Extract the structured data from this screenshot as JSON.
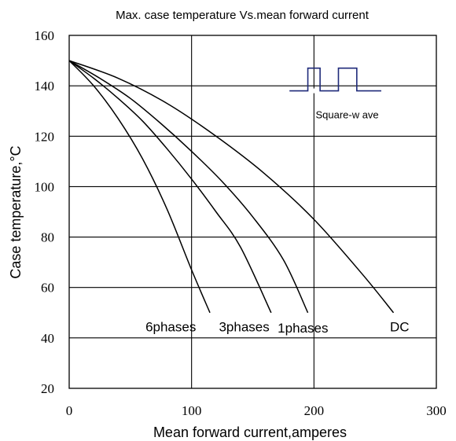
{
  "chart_data": {
    "type": "line",
    "title": "Max. case temperature Vs.mean forward current",
    "xlabel": "Mean forward current,amperes",
    "ylabel": "Case temperature,°C",
    "xlim": [
      0,
      300
    ],
    "ylim": [
      20,
      160
    ],
    "x_ticks": [
      "0",
      "100",
      "200",
      "300"
    ],
    "y_ticks": [
      "20",
      "40",
      "60",
      "80",
      "100",
      "120",
      "140",
      "160"
    ],
    "x_tick_values": [
      0,
      100,
      200,
      300
    ],
    "y_tick_values": [
      20,
      40,
      60,
      80,
      100,
      120,
      140,
      160
    ],
    "grid": true,
    "series": [
      {
        "name": "6phases",
        "x": [
          0,
          20,
          40,
          60,
          80,
          100,
          115
        ],
        "y": [
          150,
          140,
          127,
          111,
          91,
          67,
          50
        ]
      },
      {
        "name": "3phases",
        "x": [
          0,
          20,
          40,
          60,
          80,
          100,
          120,
          140,
          165
        ],
        "y": [
          150,
          143,
          135,
          126,
          115,
          103,
          90,
          76,
          50
        ]
      },
      {
        "name": "1phases",
        "x": [
          0,
          25,
          50,
          75,
          100,
          125,
          150,
          175,
          195
        ],
        "y": [
          150,
          143,
          135,
          125,
          114,
          102,
          88,
          71,
          50
        ]
      },
      {
        "name": "DC",
        "x": [
          0,
          40,
          80,
          120,
          160,
          200,
          240,
          265
        ],
        "y": [
          150,
          143,
          133,
          120,
          105,
          87,
          65,
          50
        ]
      }
    ],
    "inset": {
      "label": "Square-w ave",
      "levels_x": [
        180,
        195,
        205,
        220,
        235,
        255,
        270
      ],
      "levels_y": [
        138,
        147
      ]
    },
    "series_label_positions": [
      {
        "name": "6phases",
        "x": 83,
        "y": 44.5
      },
      {
        "name": "3phases",
        "x": 143,
        "y": 44.5
      },
      {
        "name": "1phases",
        "x": 191,
        "y": 44
      },
      {
        "name": "DC",
        "x": 270,
        "y": 44.5
      }
    ]
  }
}
